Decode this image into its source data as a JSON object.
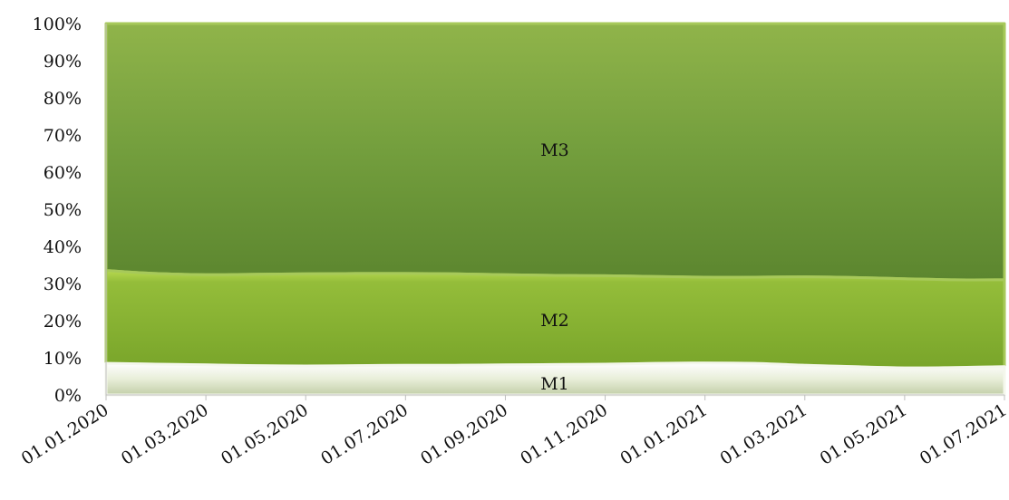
{
  "chart_data": {
    "type": "area",
    "stacking": "percent",
    "title": "",
    "xlabel": "",
    "ylabel": "",
    "ylim": [
      0,
      100
    ],
    "y_ticks": [
      "0%",
      "10%",
      "20%",
      "30%",
      "40%",
      "50%",
      "60%",
      "70%",
      "80%",
      "90%",
      "100%"
    ],
    "x_ticks": [
      "01.01.2020",
      "01.03.2020",
      "01.05.2020",
      "01.07.2020",
      "01.09.2020",
      "01.11.2020",
      "01.01.2021",
      "01.03.2021",
      "01.05.2021",
      "01.07.2021"
    ],
    "x": [
      "01.01.2020",
      "01.02.2020",
      "01.03.2020",
      "01.04.2020",
      "01.05.2020",
      "01.06.2020",
      "01.07.2020",
      "01.08.2020",
      "01.09.2020",
      "01.10.2020",
      "01.11.2020",
      "01.12.2020",
      "01.01.2021",
      "01.02.2021",
      "01.03.2021",
      "01.04.2021",
      "01.05.2021",
      "01.06.2021",
      "01.07.2021"
    ],
    "series": [
      {
        "name": "M1",
        "color": "#e3ead3",
        "values": [
          8.5,
          8.3,
          8.1,
          7.9,
          7.8,
          7.9,
          8.0,
          8.0,
          8.1,
          8.2,
          8.3,
          8.5,
          8.6,
          8.5,
          8.0,
          7.6,
          7.3,
          7.4,
          7.6
        ]
      },
      {
        "name": "M2",
        "color": "#86b034",
        "values": [
          25.0,
          24.4,
          24.3,
          24.6,
          24.8,
          24.8,
          24.7,
          24.6,
          24.3,
          24.0,
          23.8,
          23.4,
          23.1,
          23.2,
          23.8,
          24.0,
          24.0,
          23.6,
          23.4
        ]
      },
      {
        "name": "M3",
        "color": "#6d9a3b",
        "values": [
          66.5,
          67.3,
          67.6,
          67.5,
          67.4,
          67.3,
          67.3,
          67.4,
          67.6,
          67.8,
          67.9,
          68.1,
          68.3,
          68.3,
          68.2,
          68.4,
          68.7,
          69.0,
          69.0
        ]
      }
    ],
    "grid": false,
    "legend": "none",
    "series_labels_inside": true
  }
}
